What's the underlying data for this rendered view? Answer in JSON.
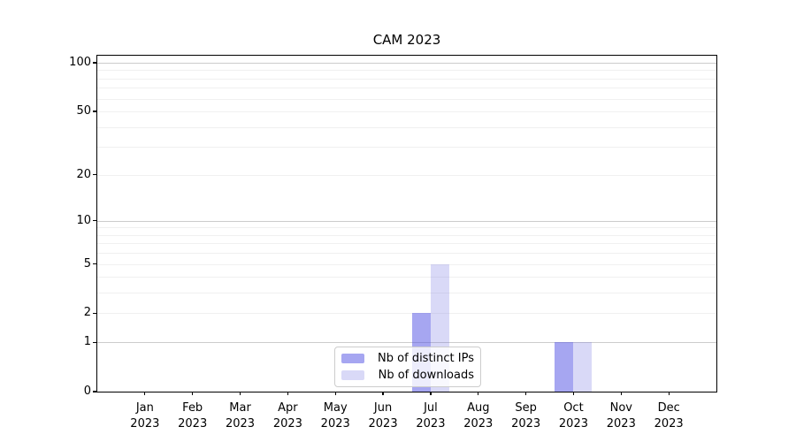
{
  "chart_data": {
    "type": "bar",
    "title": "CAM 2023",
    "x_categories": [
      "Jan",
      "Feb",
      "Mar",
      "Apr",
      "May",
      "Jun",
      "Jul",
      "Aug",
      "Sep",
      "Oct",
      "Nov",
      "Dec"
    ],
    "x_year_label": "2023",
    "series": [
      {
        "name": "Nb of distinct IPs",
        "color": "rgba(77,77,227,0.5)",
        "color_hex_on_white": "#a6a6f1",
        "values": [
          0,
          0,
          0,
          0,
          0,
          0,
          2,
          0,
          0,
          1,
          0,
          0
        ]
      },
      {
        "name": "Nb of downloads",
        "color": "rgba(103,103,223,0.25)",
        "color_hex_on_white": "#d9d9f7",
        "values": [
          0,
          0,
          0,
          0,
          0,
          0,
          5,
          0,
          0,
          1,
          0,
          0
        ]
      }
    ],
    "y_scale": "log1p",
    "ylim": [
      0,
      110.5
    ],
    "y_major_tick_labels": [
      0,
      1,
      2,
      5,
      10,
      20,
      50,
      100
    ],
    "y_gridlines_major": [
      1,
      10,
      100
    ],
    "y_gridlines_minor": [
      2,
      3,
      4,
      5,
      6,
      7,
      8,
      9,
      20,
      30,
      40,
      50,
      60,
      70,
      80,
      90
    ],
    "grid": true,
    "legend_position": "lower center inside",
    "colors": {
      "grid_major": "#cccccc",
      "grid_minor": "#f0f0f0",
      "axis": "#000000",
      "legend_border": "#cccccc",
      "background": "#ffffff"
    }
  }
}
